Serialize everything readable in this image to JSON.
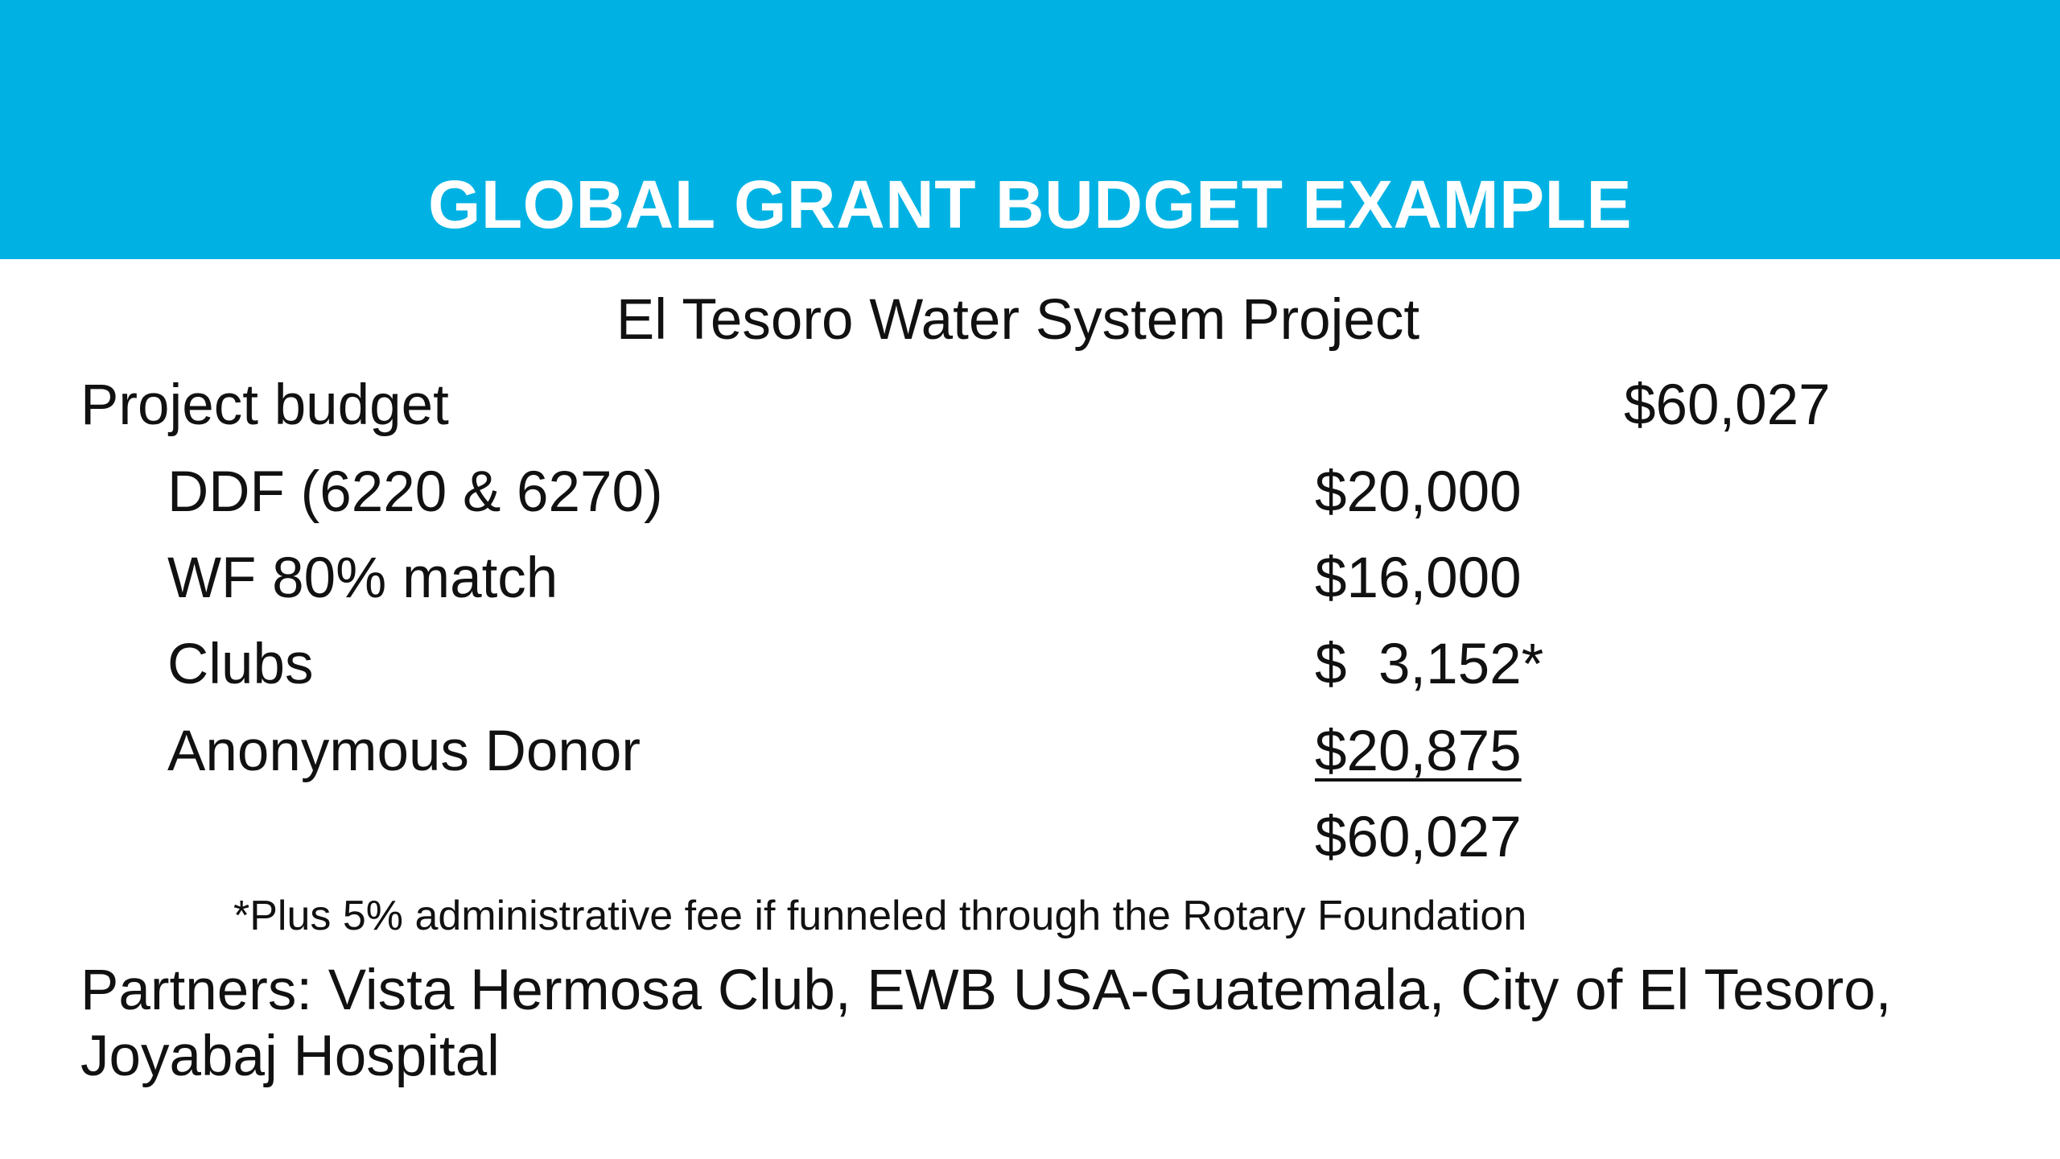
{
  "title": "GLOBAL GRANT BUDGET EXAMPLE",
  "subtitle": "El Tesoro Water System Project",
  "project_budget": {
    "label": "Project budget",
    "amount": "$60,027"
  },
  "line_items": [
    {
      "label": "DDF (6220 & 6270)",
      "amount": "$20,000"
    },
    {
      "label": "WF 80% match",
      "amount": "$16,000"
    },
    {
      "label": "Clubs",
      "amount": "$  3,152*"
    },
    {
      "label": "Anonymous Donor",
      "amount": "$20,875"
    }
  ],
  "total": "$60,027",
  "footnote": "*Plus 5% administrative fee if funneled through the Rotary Foundation",
  "partners": "Partners:  Vista Hermosa Club, EWB USA-Guatemala, City of El Tesoro, Joyabaj Hospital",
  "colors": {
    "header_band": "#00b2e3",
    "title_text": "#ffffff",
    "body_text": "#111111"
  }
}
